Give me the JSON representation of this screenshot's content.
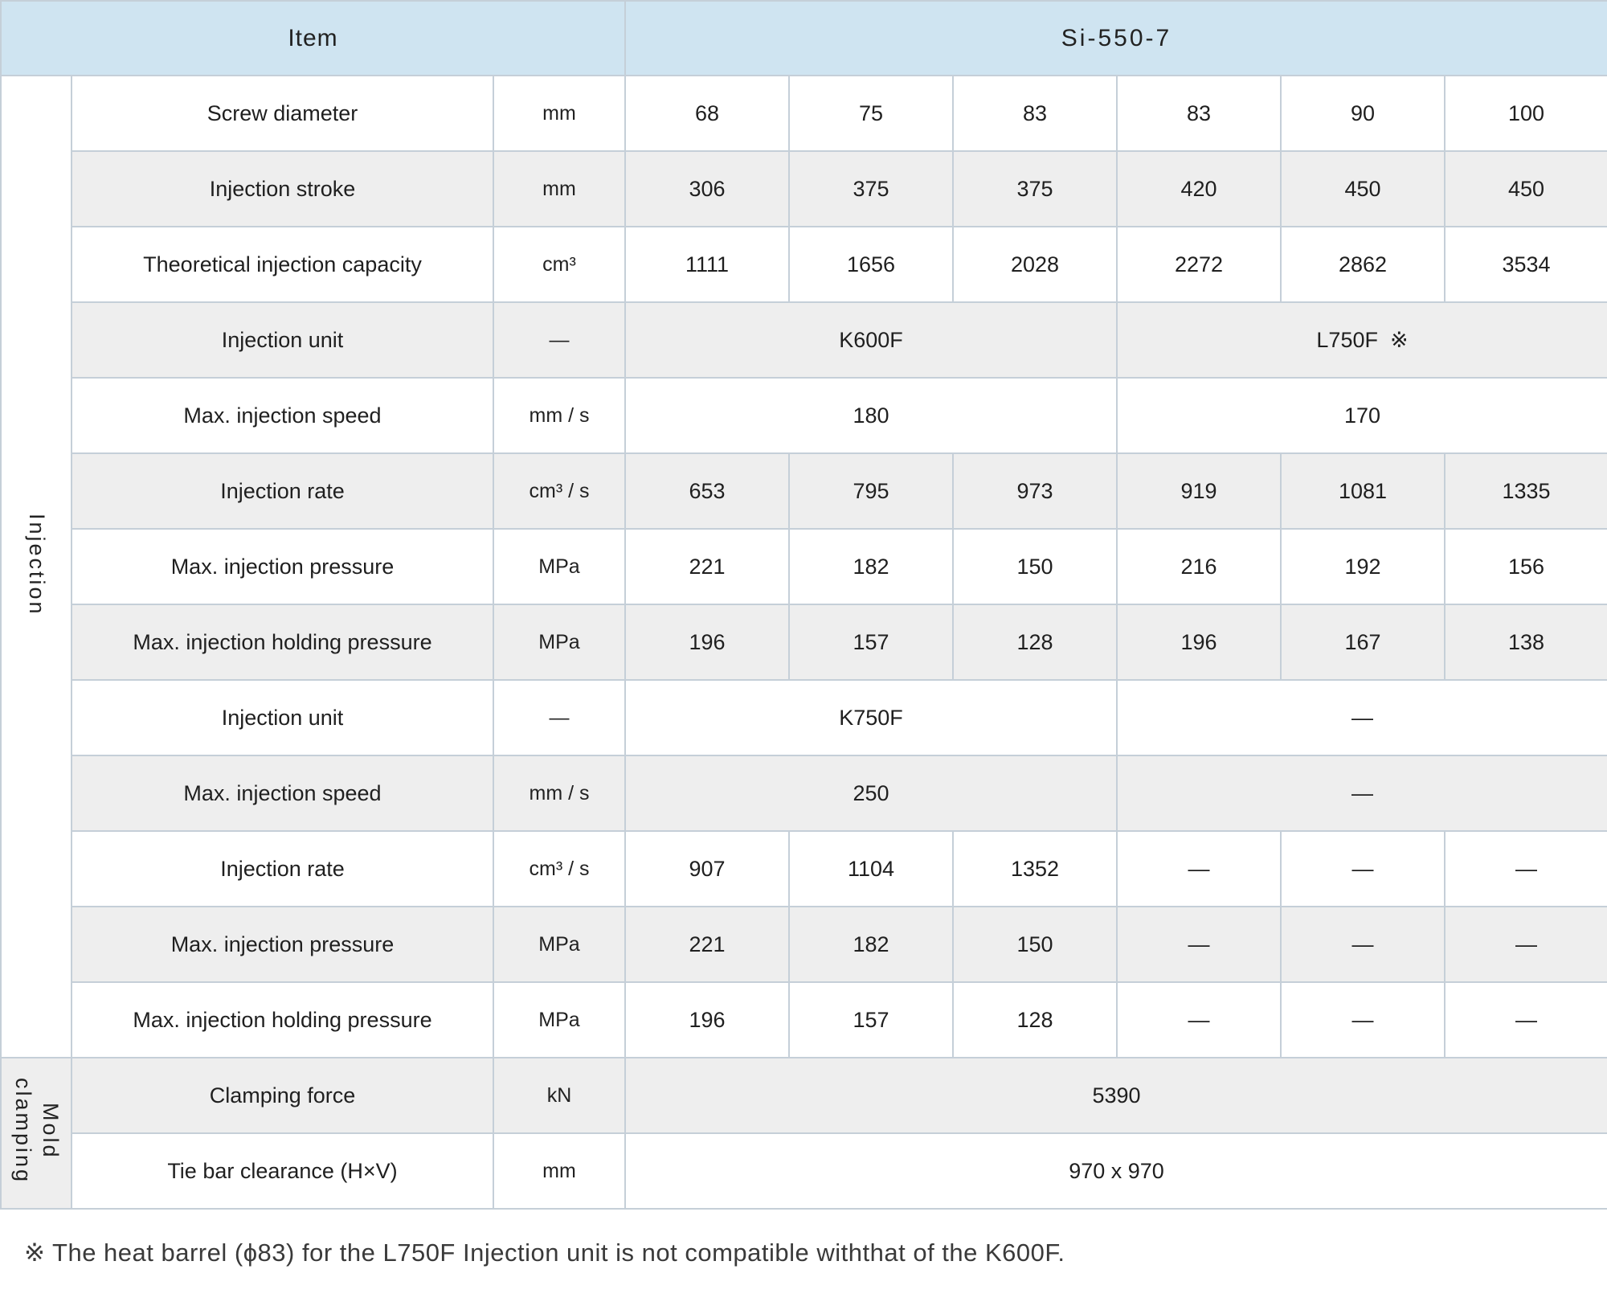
{
  "header": {
    "item_label": "Item",
    "model_label": "Si-550-7"
  },
  "sections": [
    {
      "label": "Injection",
      "start": 0,
      "span": 13
    },
    {
      "label": "Mold\nclamping",
      "start": 13,
      "span": 2
    }
  ],
  "table": {
    "rows": [
      {
        "item": "Screw diameter",
        "unit": "mm",
        "cells": [
          {
            "text": "68",
            "span": 1
          },
          {
            "text": "75",
            "span": 1
          },
          {
            "text": "83",
            "span": 1
          },
          {
            "text": "83",
            "span": 1
          },
          {
            "text": "90",
            "span": 1
          },
          {
            "text": "100",
            "span": 1
          }
        ]
      },
      {
        "item": "Injection stroke",
        "unit": "mm",
        "cells": [
          {
            "text": "306",
            "span": 1
          },
          {
            "text": "375",
            "span": 1
          },
          {
            "text": "375",
            "span": 1
          },
          {
            "text": "420",
            "span": 1
          },
          {
            "text": "450",
            "span": 1
          },
          {
            "text": "450",
            "span": 1
          }
        ]
      },
      {
        "item": "Theoretical injection capacity",
        "unit": "cm³",
        "cells": [
          {
            "text": "1111",
            "span": 1
          },
          {
            "text": "1656",
            "span": 1
          },
          {
            "text": "2028",
            "span": 1
          },
          {
            "text": "2272",
            "span": 1
          },
          {
            "text": "2862",
            "span": 1
          },
          {
            "text": "3534",
            "span": 1
          }
        ]
      },
      {
        "item": "Injection unit",
        "unit": "—",
        "cells": [
          {
            "text": "K600F",
            "span": 3
          },
          {
            "text": "L750F  ※",
            "span": 3
          }
        ]
      },
      {
        "item": "Max. injection speed",
        "unit": "mm / s",
        "cells": [
          {
            "text": "180",
            "span": 3
          },
          {
            "text": "170",
            "span": 3
          }
        ]
      },
      {
        "item": "Injection rate",
        "unit": "cm³ / s",
        "cells": [
          {
            "text": "653",
            "span": 1
          },
          {
            "text": "795",
            "span": 1
          },
          {
            "text": "973",
            "span": 1
          },
          {
            "text": "919",
            "span": 1
          },
          {
            "text": "1081",
            "span": 1
          },
          {
            "text": "1335",
            "span": 1
          }
        ]
      },
      {
        "item": "Max. injection pressure",
        "unit": "MPa",
        "cells": [
          {
            "text": "221",
            "span": 1
          },
          {
            "text": "182",
            "span": 1
          },
          {
            "text": "150",
            "span": 1
          },
          {
            "text": "216",
            "span": 1
          },
          {
            "text": "192",
            "span": 1
          },
          {
            "text": "156",
            "span": 1
          }
        ]
      },
      {
        "item": "Max. injection holding pressure",
        "unit": "MPa",
        "cells": [
          {
            "text": "196",
            "span": 1
          },
          {
            "text": "157",
            "span": 1
          },
          {
            "text": "128",
            "span": 1
          },
          {
            "text": "196",
            "span": 1
          },
          {
            "text": "167",
            "span": 1
          },
          {
            "text": "138",
            "span": 1
          }
        ]
      },
      {
        "item": "Injection unit",
        "unit": "—",
        "cells": [
          {
            "text": "K750F",
            "span": 3
          },
          {
            "text": "—",
            "span": 3
          }
        ]
      },
      {
        "item": "Max. injection speed",
        "unit": "mm / s",
        "cells": [
          {
            "text": "250",
            "span": 3
          },
          {
            "text": "—",
            "span": 3
          }
        ]
      },
      {
        "item": "Injection rate",
        "unit": "cm³ / s",
        "cells": [
          {
            "text": "907",
            "span": 1
          },
          {
            "text": "1104",
            "span": 1
          },
          {
            "text": "1352",
            "span": 1
          },
          {
            "text": "—",
            "span": 1
          },
          {
            "text": "—",
            "span": 1
          },
          {
            "text": "—",
            "span": 1
          }
        ]
      },
      {
        "item": "Max. injection pressure",
        "unit": "MPa",
        "cells": [
          {
            "text": "221",
            "span": 1
          },
          {
            "text": "182",
            "span": 1
          },
          {
            "text": "150",
            "span": 1
          },
          {
            "text": "—",
            "span": 1
          },
          {
            "text": "—",
            "span": 1
          },
          {
            "text": "—",
            "span": 1
          }
        ]
      },
      {
        "item": "Max. injection holding pressure",
        "unit": "MPa",
        "cells": [
          {
            "text": "196",
            "span": 1
          },
          {
            "text": "157",
            "span": 1
          },
          {
            "text": "128",
            "span": 1
          },
          {
            "text": "—",
            "span": 1
          },
          {
            "text": "—",
            "span": 1
          },
          {
            "text": "—",
            "span": 1
          }
        ]
      },
      {
        "item": "Clamping force",
        "unit": "kN",
        "cells": [
          {
            "text": "5390",
            "span": 6
          }
        ]
      },
      {
        "item": "Tie bar clearance (H×V)",
        "unit": "mm",
        "cells": [
          {
            "text": "970 x 970",
            "span": 6
          }
        ]
      }
    ]
  },
  "footnote": "※ The heat barrel (ϕ83) for the L750F Injection unit is not compatible withthat of the K600F.",
  "colors": {
    "header_bg": "#cfe4f1",
    "row_alt_bg": "#eeeeee",
    "border": "#c5cfd8"
  }
}
